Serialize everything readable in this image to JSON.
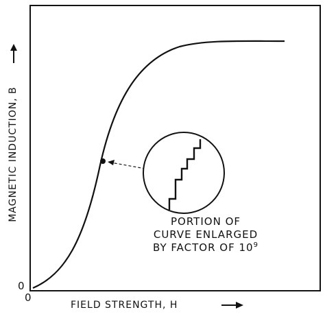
{
  "figure": {
    "ylabel": "MAGNETIC INDUCTION, B",
    "xlabel": "FIELD STRENGTH, H",
    "origin_y": "0",
    "origin_x": "0",
    "caption": {
      "line1": "PORTION OF",
      "line2": "CURVE ENLARGED",
      "line3_text": "BY FACTOR OF 10",
      "line3_exponent": "9"
    }
  }
}
